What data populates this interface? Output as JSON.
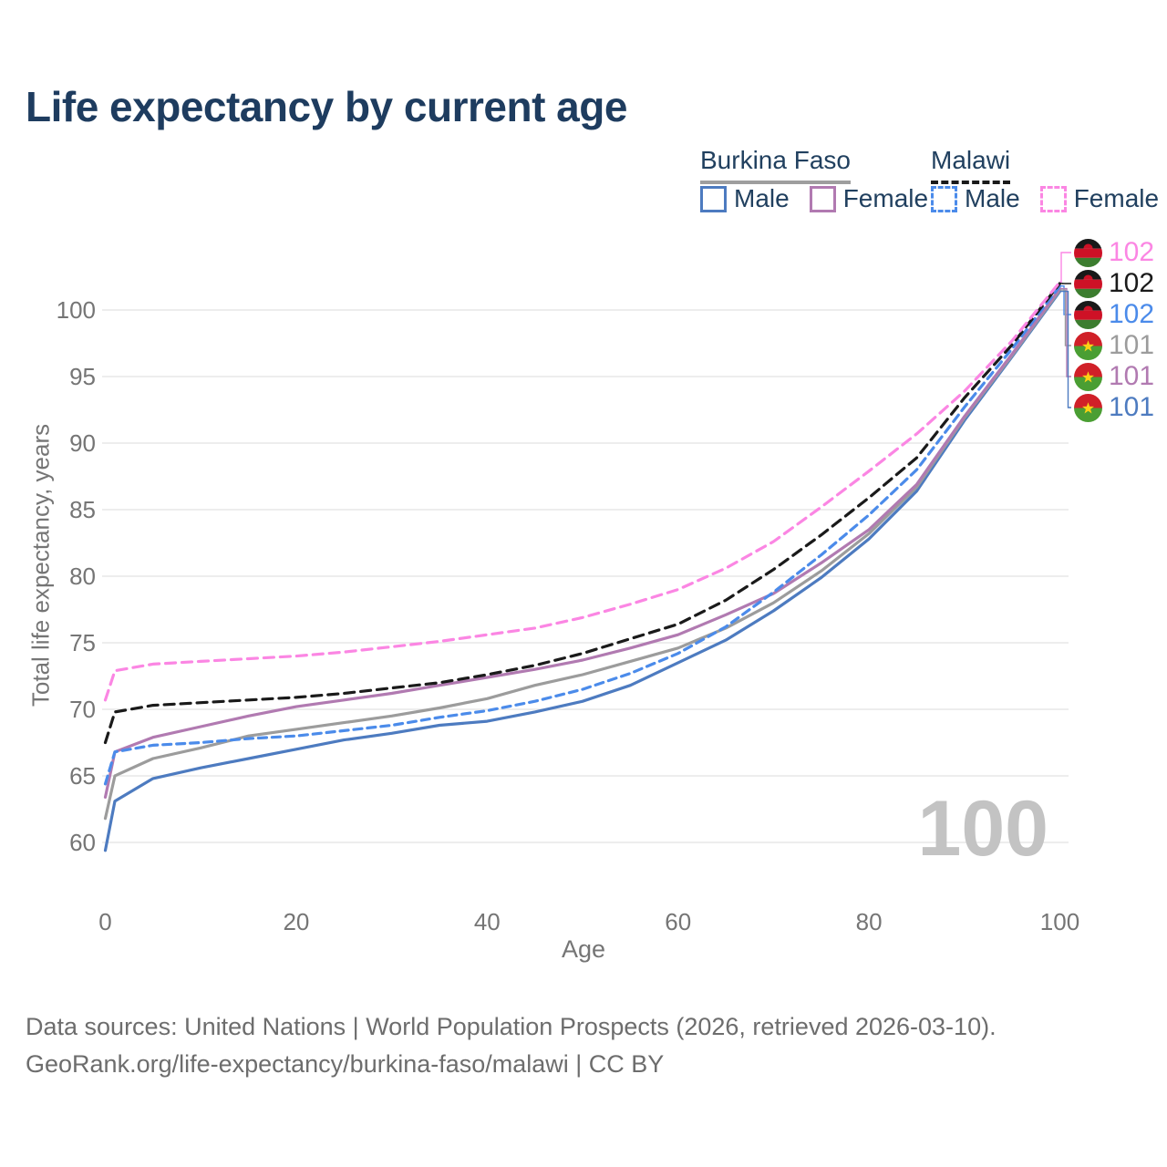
{
  "page": {
    "title": "Life expectancy by current age"
  },
  "legend": {
    "groups": [
      {
        "country": "Burkina Faso",
        "line_style": "solid",
        "underline_color": "#9e9e9e",
        "items": [
          {
            "label": "Male",
            "color": "#4d7bc0"
          },
          {
            "label": "Female",
            "color": "#b17ab1"
          }
        ]
      },
      {
        "country": "Malawi",
        "line_style": "dashed",
        "underline_color": "#1a1a1a",
        "items": [
          {
            "label": "Male",
            "color": "#4b8bea"
          },
          {
            "label": "Female",
            "color": "#fb86e3"
          }
        ]
      }
    ]
  },
  "chart_data": {
    "type": "line",
    "title": "Life expectancy by current age",
    "xlabel": "Age",
    "ylabel": "Total life expectancy, years",
    "x_ticks": [
      0,
      20,
      40,
      60,
      80,
      100
    ],
    "y_ticks": [
      60,
      65,
      70,
      75,
      80,
      85,
      90,
      95,
      100
    ],
    "xlim": [
      0,
      100
    ],
    "ylim": [
      59,
      103
    ],
    "grid": true,
    "legend_position": "top-right",
    "watermark": "100",
    "ages": [
      0,
      1,
      5,
      10,
      15,
      20,
      25,
      30,
      35,
      40,
      45,
      50,
      55,
      60,
      65,
      70,
      75,
      80,
      85,
      90,
      95,
      100
    ],
    "series": [
      {
        "id": "bf-male",
        "name": "Burkina Faso Male",
        "color": "#4d7bc0",
        "dash": "solid",
        "flag": "burkina-faso",
        "end_label": "101",
        "values": [
          59.4,
          63.1,
          64.8,
          65.6,
          66.3,
          67.0,
          67.7,
          68.2,
          68.8,
          69.1,
          69.8,
          70.6,
          71.8,
          73.5,
          75.2,
          77.4,
          79.9,
          82.8,
          86.4,
          91.7,
          96.5,
          101.4
        ]
      },
      {
        "id": "bf-both",
        "name": "Burkina Faso",
        "color": "#9c9c9c",
        "dash": "solid",
        "flag": "burkina-faso",
        "end_label": "101",
        "values": [
          61.8,
          65.0,
          66.3,
          67.1,
          68.0,
          68.5,
          69.0,
          69.5,
          70.1,
          70.8,
          71.8,
          72.6,
          73.6,
          74.6,
          76.1,
          78.0,
          80.4,
          83.2,
          86.7,
          91.9,
          96.6,
          101.5
        ]
      },
      {
        "id": "bf-female",
        "name": "Burkina Faso Female",
        "color": "#b17ab1",
        "dash": "solid",
        "flag": "burkina-faso",
        "end_label": "101",
        "values": [
          63.4,
          66.8,
          67.9,
          68.7,
          69.5,
          70.2,
          70.7,
          71.2,
          71.8,
          72.4,
          73.0,
          73.7,
          74.6,
          75.6,
          77.1,
          78.7,
          81.0,
          83.5,
          86.9,
          92.0,
          96.7,
          101.6
        ]
      },
      {
        "id": "mw-male",
        "name": "Malawi Male",
        "color": "#4b8bea",
        "dash": "9 6",
        "flag": "malawi",
        "end_label": "102",
        "values": [
          64.4,
          66.8,
          67.3,
          67.5,
          67.8,
          68.0,
          68.4,
          68.8,
          69.4,
          69.9,
          70.6,
          71.5,
          72.7,
          74.2,
          76.2,
          78.8,
          81.6,
          84.6,
          88.0,
          92.7,
          97.1,
          101.8
        ]
      },
      {
        "id": "mw-both",
        "name": "Malawi",
        "color": "#1a1a1a",
        "dash": "11 7",
        "flag": "malawi",
        "end_label": "102",
        "values": [
          67.5,
          69.8,
          70.3,
          70.5,
          70.7,
          70.9,
          71.2,
          71.6,
          72.0,
          72.6,
          73.3,
          74.2,
          75.3,
          76.4,
          78.2,
          80.5,
          83.1,
          85.9,
          88.9,
          93.4,
          97.4,
          102.0
        ]
      },
      {
        "id": "mw-female",
        "name": "Malawi Female",
        "color": "#fb86e3",
        "dash": "11 7",
        "flag": "malawi",
        "end_label": "102",
        "values": [
          70.7,
          72.9,
          73.4,
          73.6,
          73.8,
          74.0,
          74.3,
          74.7,
          75.1,
          75.6,
          76.1,
          76.9,
          77.9,
          79.0,
          80.6,
          82.6,
          85.2,
          87.9,
          90.7,
          93.9,
          97.7,
          102.1
        ]
      }
    ],
    "end_label_rows": [
      "mw-female",
      "mw-both",
      "mw-male",
      "bf-both",
      "bf-female",
      "bf-male"
    ],
    "flag_colors": {
      "malawi": {
        "black": "#191919",
        "red": "#ce1126",
        "green": "#3c7d2f"
      },
      "burkina-faso": {
        "red": "#d02028",
        "green": "#4a9e33",
        "yellow": "#fcd116"
      }
    }
  },
  "footer": {
    "line1": "Data sources: United Nations | World Population Prospects (2026, retrieved 2026-03-10).",
    "line2": "GeoRank.org/life-expectancy/burkina-faso/malawi | CC BY"
  }
}
